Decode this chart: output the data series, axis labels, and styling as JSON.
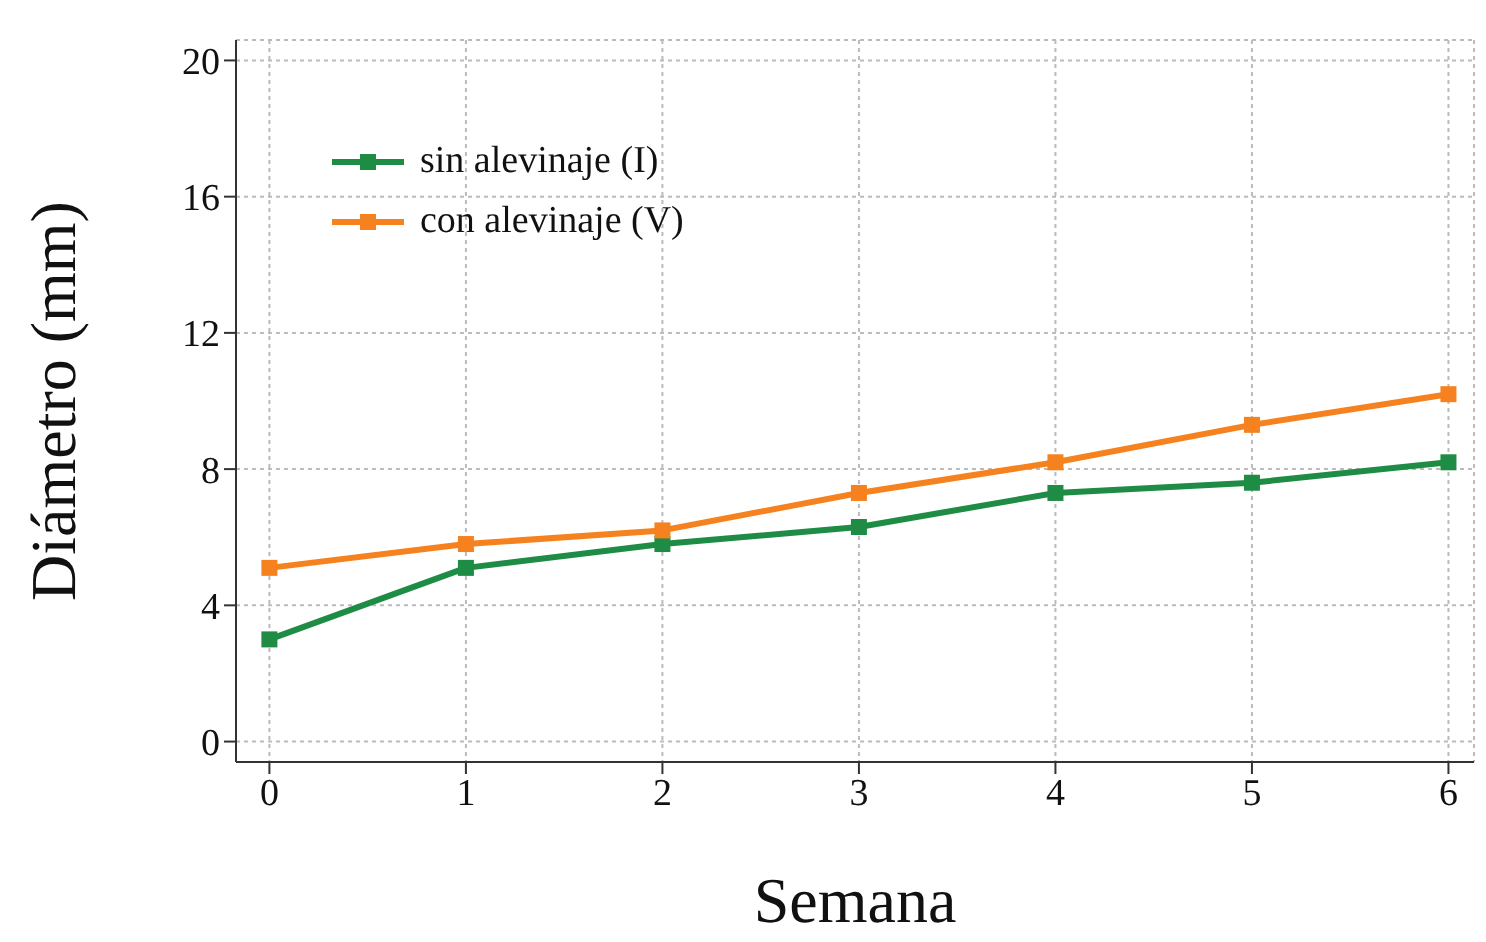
{
  "chart_data": {
    "type": "line",
    "xlabel": "Semana",
    "ylabel": "Diámetro (mm)",
    "x": [
      0,
      1,
      2,
      3,
      4,
      5,
      6
    ],
    "series": [
      {
        "name": "sin alevinaje (I)",
        "color": "#1e8c45",
        "values": [
          3.0,
          5.1,
          5.8,
          6.3,
          7.3,
          7.6,
          8.2
        ]
      },
      {
        "name": "con alevinaje (V)",
        "color": "#f5821f",
        "values": [
          5.1,
          5.8,
          6.2,
          7.3,
          8.2,
          9.3,
          10.2
        ]
      }
    ],
    "xlim": [
      -0.17,
      6.13
    ],
    "xticks": [
      0,
      1,
      2,
      3,
      4,
      5,
      6
    ],
    "ylim": [
      -0.6,
      20.6
    ],
    "yticks": [
      0,
      4,
      8,
      12,
      16,
      20
    ],
    "grid": true,
    "legend": "top left",
    "marker": "square",
    "line_style": "solid"
  }
}
